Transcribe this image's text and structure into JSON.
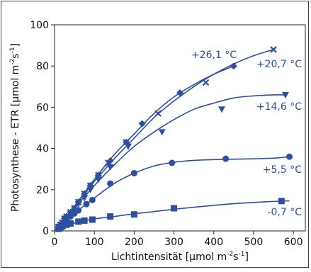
{
  "chart_data": {
    "type": "scatter",
    "xlabel_main": "Lichtintensität [µmol m",
    "xlabel_sup": "-2",
    "xlabel_mid": "s",
    "xlabel_sup2": "-1",
    "xlabel_end": "]",
    "ylabel_main": "Photosynthese - ETR [µmol m",
    "ylabel_sup": "-2",
    "ylabel_mid": "s",
    "ylabel_sup2": "-1",
    "ylabel_end": "]",
    "xlim": [
      0,
      630
    ],
    "ylim": [
      0,
      100
    ],
    "xticks": [
      0,
      100,
      200,
      300,
      400,
      500,
      600
    ],
    "yticks": [
      0,
      20,
      40,
      60,
      80,
      100
    ],
    "grid": false,
    "color": "#2e4f9f",
    "series": [
      {
        "name": "+26,1 °C",
        "marker": "x",
        "x": [
          10,
          15,
          20,
          25,
          30,
          40,
          50,
          60,
          75,
          90,
          110,
          135,
          180,
          260,
          380,
          550
        ],
        "y": [
          2,
          3,
          4,
          6,
          7,
          9,
          11,
          14,
          18,
          22,
          27,
          33,
          43,
          57,
          72,
          88
        ],
        "curve_x": [
          0,
          50,
          100,
          150,
          200,
          250,
          300,
          350,
          400,
          450,
          500,
          550
        ],
        "curve_y": [
          0,
          12,
          24,
          35,
          45,
          55,
          63,
          70,
          76,
          81,
          85,
          88
        ]
      },
      {
        "name": "+20,7 °C",
        "marker": "diamond",
        "x": [
          10,
          15,
          20,
          25,
          30,
          40,
          50,
          60,
          75,
          90,
          110,
          140,
          180,
          220,
          315,
          450
        ],
        "y": [
          2,
          3,
          4,
          6,
          7,
          9,
          11,
          14,
          18,
          22,
          27,
          34,
          43,
          52,
          67,
          80
        ],
        "curve_x": [
          0,
          50,
          100,
          150,
          200,
          250,
          300,
          350,
          400,
          450
        ],
        "curve_y": [
          0,
          12,
          25,
          37,
          47,
          57,
          65,
          71,
          76,
          80
        ]
      },
      {
        "name": "+14,6 °C",
        "marker": "triangle-down",
        "x": [
          10,
          15,
          20,
          25,
          30,
          40,
          50,
          60,
          75,
          90,
          110,
          140,
          185,
          270,
          420,
          580
        ],
        "y": [
          2,
          3,
          4,
          5,
          6,
          8,
          10,
          13,
          16,
          20,
          25,
          31,
          41,
          48,
          59,
          66
        ],
        "curve_x": [
          0,
          50,
          100,
          150,
          200,
          250,
          300,
          350,
          400,
          450,
          500,
          550,
          580
        ],
        "curve_y": [
          0,
          11,
          22,
          32,
          41,
          48,
          54,
          59,
          62,
          64.5,
          65.5,
          66,
          66
        ]
      },
      {
        "name": "+5,5 °C",
        "marker": "circle",
        "x": [
          10,
          15,
          20,
          25,
          30,
          40,
          50,
          60,
          80,
          95,
          140,
          200,
          295,
          430,
          590
        ],
        "y": [
          1.5,
          2.5,
          3.5,
          4.5,
          5.5,
          7,
          8.5,
          10,
          13,
          15,
          23,
          28,
          33,
          35,
          36
        ],
        "curve_x": [
          0,
          50,
          100,
          150,
          200,
          250,
          300,
          350,
          400,
          450,
          500,
          550,
          590
        ],
        "curve_y": [
          0,
          8.5,
          16,
          23,
          28,
          31.5,
          33.3,
          34.2,
          34.6,
          34.8,
          35,
          35.3,
          36
        ]
      },
      {
        "name": "-0,7 °C",
        "marker": "square",
        "x": [
          10,
          15,
          20,
          30,
          40,
          60,
          75,
          95,
          140,
          200,
          300,
          570
        ],
        "y": [
          1,
          1.8,
          2.3,
          3,
          3.6,
          4.5,
          5,
          5.5,
          7,
          8,
          11,
          14.5
        ],
        "curve_x": [
          0,
          50,
          100,
          150,
          200,
          250,
          300,
          350,
          400,
          450,
          500,
          550,
          590
        ],
        "curve_y": [
          0,
          3.8,
          5.8,
          7,
          8.3,
          9.4,
          10.5,
          11.5,
          12.4,
          13.2,
          13.8,
          14.3,
          14.6
        ]
      }
    ]
  }
}
